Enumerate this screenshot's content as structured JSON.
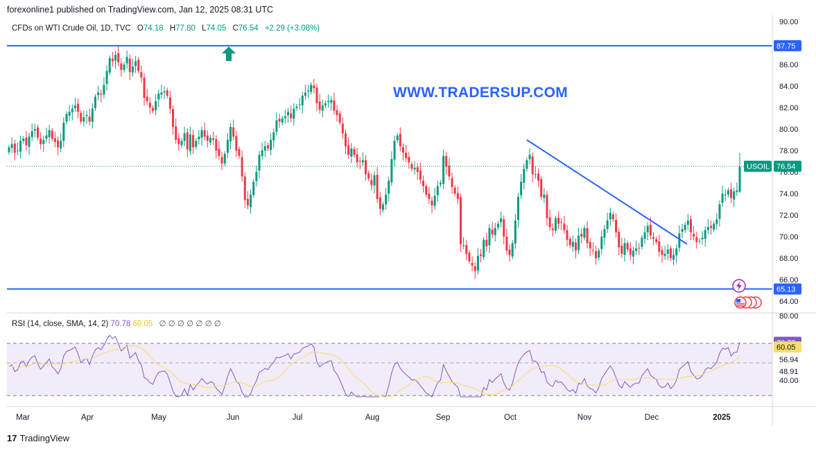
{
  "header": {
    "published": "forexonline1 published on TradingView.com, Jan 12, 2025 08:31 UTC"
  },
  "legend": {
    "symbol": "CFDs on WTI Crude Oil, 1D, TVC",
    "open_label": "O",
    "open": "74.18",
    "high_label": "H",
    "high": "77.80",
    "low_label": "L",
    "low": "74.05",
    "close_label": "C",
    "close": "76.54",
    "change": "+2.29 (+3.08%)"
  },
  "watermark": "WWW.TRADERSUP.COM",
  "rsi_legend": {
    "label": "RSI (14, close, SMA, 14, 2)",
    "rsi": "70.78",
    "sma": "60.05",
    "nil": "∅ ∅ ∅ ∅ ∅ ∅ ∅"
  },
  "footer": {
    "logo": "17",
    "brand": "TradingView"
  },
  "colors": {
    "up": "#089981",
    "down": "#f23645",
    "hline": "#2962ff",
    "trendline": "#2962ff",
    "rsi": "#7e57c2",
    "rsi_sma": "#f7dc6f",
    "rsi_band": "#ede7f6",
    "axis_text": "#131722"
  },
  "icons": {
    "arrow": "up-arrow-icon",
    "flash": "lightning-icon",
    "flag": "us-flag-icon"
  },
  "chart_data": [
    {
      "type": "candlestick",
      "title": "CFDs on WTI Crude Oil, 1D, TVC",
      "x_tick_labels": [
        "Mar",
        "Apr",
        "May",
        "Jun",
        "Jul",
        "Aug",
        "Sep",
        "Oct",
        "Nov",
        "Dec",
        "2025"
      ],
      "y_tick_labels": [
        "64.00",
        "66.00",
        "68.00",
        "70.00",
        "72.00",
        "74.00",
        "76.00",
        "78.00",
        "80.00",
        "82.00",
        "84.00",
        "86.00",
        "88.00",
        "90.00"
      ],
      "ylim": [
        63.5,
        90.2
      ],
      "grid": false,
      "horizontal_lines": [
        {
          "label": "87.75",
          "value": 87.75
        },
        {
          "label": "65.13",
          "value": 65.13
        }
      ],
      "last_price_label": {
        "symbol": "USOIL",
        "value": "76.54"
      },
      "trendline": {
        "start": {
          "x": "2024-10-09",
          "y": 79.0
        },
        "end": {
          "x": "2024-12-18",
          "y": 69.3
        }
      },
      "series": [
        {
          "name": "USOIL",
          "close": [
            78.3,
            78.6,
            77.8,
            78.0,
            78.9,
            79.1,
            78.5,
            79.3,
            79.8,
            80.0,
            79.2,
            78.6,
            79.0,
            79.4,
            79.9,
            79.1,
            78.8,
            78.3,
            78.9,
            80.6,
            81.4,
            81.6,
            81.9,
            82.2,
            81.6,
            80.7,
            81.1,
            81.3,
            80.7,
            81.9,
            83.0,
            83.4,
            83.2,
            84.1,
            85.4,
            86.6,
            86.3,
            86.9,
            86.2,
            85.5,
            86.0,
            86.7,
            85.3,
            85.8,
            86.3,
            85.4,
            84.8,
            82.9,
            82.6,
            82.0,
            81.7,
            82.6,
            83.3,
            83.4,
            83.5,
            83.1,
            81.9,
            80.2,
            79.0,
            78.6,
            78.9,
            79.6,
            78.1,
            79.5,
            78.3,
            78.9,
            79.3,
            79.9,
            79.3,
            78.9,
            79.2,
            79.0,
            78.0,
            77.5,
            76.8,
            77.7,
            79.0,
            80.2,
            79.3,
            78.0,
            77.5,
            75.6,
            73.4,
            72.9,
            73.9,
            75.1,
            76.0,
            77.6,
            78.0,
            78.4,
            78.2,
            79.0,
            79.7,
            80.8,
            80.7,
            81.0,
            81.2,
            81.6,
            81.0,
            81.9,
            82.1,
            82.3,
            83.1,
            83.4,
            83.6,
            84.1,
            83.8,
            82.4,
            81.8,
            82.2,
            82.4,
            82.6,
            82.7,
            81.7,
            81.3,
            80.6,
            79.6,
            78.4,
            77.6,
            78.2,
            77.6,
            76.9,
            77.0,
            77.1,
            75.8,
            75.4,
            74.8,
            75.7,
            73.5,
            72.6,
            73.0,
            73.9,
            75.2,
            77.2,
            78.9,
            79.4,
            78.4,
            77.8,
            77.3,
            76.9,
            76.3,
            76.4,
            76.0,
            75.3,
            74.7,
            73.9,
            73.5,
            72.9,
            73.8,
            74.7,
            75.0,
            77.5,
            76.5,
            75.6,
            74.6,
            74.0,
            73.5,
            69.3,
            69.2,
            68.4,
            67.7,
            67.3,
            66.8,
            68.2,
            68.2,
            69.7,
            69.1,
            70.8,
            70.2,
            70.8,
            71.2,
            71.7,
            70.0,
            68.7,
            68.3,
            69.4,
            71.5,
            73.7,
            75.1,
            76.3,
            77.1,
            77.6,
            75.8,
            75.8,
            75.2,
            73.7,
            73.9,
            71.7,
            70.9,
            70.6,
            71.7,
            71.2,
            71.3,
            70.6,
            69.7,
            69.2,
            69.5,
            68.7,
            70.1,
            70.0,
            70.8,
            69.4,
            68.9,
            68.7,
            68.0,
            68.7,
            70.0,
            70.7,
            71.5,
            72.2,
            71.6,
            70.4,
            69.0,
            68.4,
            69.4,
            68.8,
            68.3,
            68.7,
            68.9,
            68.9,
            69.9,
            70.4,
            71.0,
            70.1,
            69.8,
            69.5,
            68.6,
            68.3,
            68.4,
            68.8,
            68.0,
            68.3,
            68.9,
            70.3,
            70.7,
            71.1,
            71.5,
            70.4,
            70.0,
            69.5,
            69.6,
            69.9,
            70.6,
            70.9,
            70.8,
            71.2,
            71.6,
            73.0,
            74.0,
            73.9,
            74.3,
            73.6,
            74.2,
            74.3,
            76.5
          ]
        }
      ]
    },
    {
      "type": "line",
      "title": "RSI (14, close, SMA, 14, 2)",
      "y_tick_labels": [
        "40.00",
        "48.91",
        "56.94",
        "60.05",
        "70.78",
        "80.00"
      ],
      "ylim": [
        29,
        80
      ],
      "bands": {
        "upper": 70,
        "lower": 30
      },
      "series": [
        {
          "name": "RSI",
          "last": 70.78
        },
        {
          "name": "SMA",
          "last": 60.05
        }
      ]
    }
  ]
}
